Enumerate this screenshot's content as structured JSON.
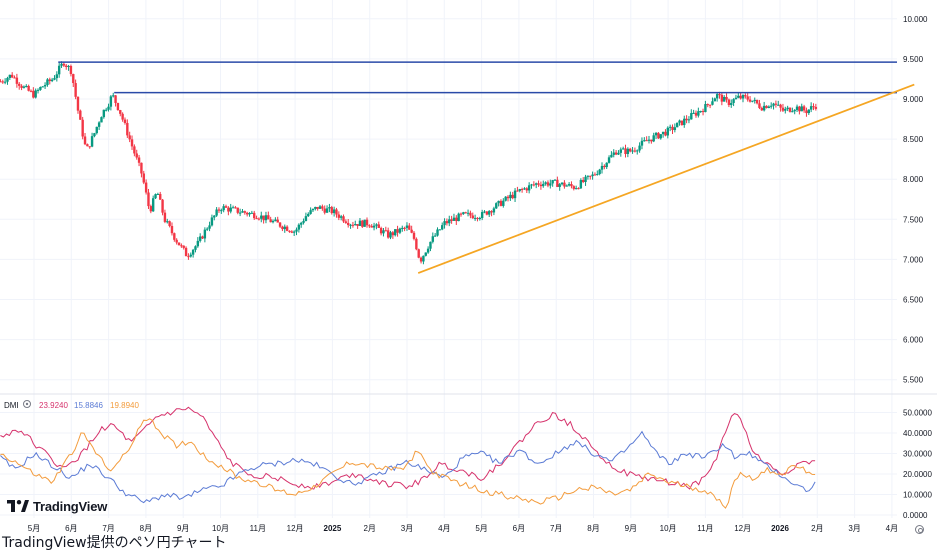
{
  "chart_data": {
    "type": "candlestick",
    "price_axis": {
      "ticks": [
        "10.000",
        "9.500",
        "9.000",
        "8.500",
        "8.000",
        "7.500",
        "7.000",
        "6.500",
        "6.000",
        "5.500"
      ],
      "ylim": [
        5.3,
        10.1
      ]
    },
    "time_axis": {
      "labels": [
        "5月",
        "6月",
        "7月",
        "8月",
        "9月",
        "10月",
        "11月",
        "12月",
        "2025",
        "2月",
        "3月",
        "4月",
        "5月",
        "6月",
        "7月",
        "8月",
        "9月",
        "10月",
        "11月",
        "12月",
        "2026",
        "2月",
        "3月",
        "4月"
      ],
      "bold": [
        "2025",
        "2026"
      ]
    },
    "horizontal_lines": [
      {
        "y": 9.46,
        "color": "#2a4aa8"
      },
      {
        "y": 9.08,
        "color": "#2a4aa8"
      }
    ],
    "trendline": {
      "from": {
        "month_index": 10.3,
        "y": 6.83
      },
      "to": {
        "month_index": 23.6,
        "y": 9.18
      },
      "color": "#f5a623"
    },
    "price_keyframes": [
      [
        -0.9,
        9.22
      ],
      [
        -0.6,
        9.3
      ],
      [
        -0.3,
        9.15
      ],
      [
        0.0,
        9.05
      ],
      [
        0.2,
        9.15
      ],
      [
        0.5,
        9.25
      ],
      [
        0.8,
        9.46
      ],
      [
        1.0,
        9.35
      ],
      [
        1.2,
        8.8
      ],
      [
        1.4,
        8.35
      ],
      [
        1.6,
        8.55
      ],
      [
        1.8,
        8.8
      ],
      [
        2.0,
        8.95
      ],
      [
        2.1,
        9.05
      ],
      [
        2.3,
        8.85
      ],
      [
        2.6,
        8.45
      ],
      [
        2.9,
        8.05
      ],
      [
        3.1,
        7.6
      ],
      [
        3.3,
        7.85
      ],
      [
        3.5,
        7.5
      ],
      [
        3.8,
        7.25
      ],
      [
        4.1,
        7.05
      ],
      [
        4.4,
        7.2
      ],
      [
        4.7,
        7.45
      ],
      [
        5.0,
        7.65
      ],
      [
        5.5,
        7.6
      ],
      [
        6.0,
        7.55
      ],
      [
        6.5,
        7.45
      ],
      [
        7.0,
        7.35
      ],
      [
        7.3,
        7.55
      ],
      [
        7.6,
        7.65
      ],
      [
        8.0,
        7.6
      ],
      [
        8.5,
        7.45
      ],
      [
        9.0,
        7.45
      ],
      [
        9.5,
        7.3
      ],
      [
        10.0,
        7.4
      ],
      [
        10.2,
        7.25
      ],
      [
        10.35,
        6.98
      ],
      [
        10.6,
        7.2
      ],
      [
        11.0,
        7.45
      ],
      [
        11.5,
        7.55
      ],
      [
        12.0,
        7.55
      ],
      [
        12.5,
        7.7
      ],
      [
        13.0,
        7.85
      ],
      [
        13.5,
        7.95
      ],
      [
        14.0,
        7.95
      ],
      [
        14.5,
        7.9
      ],
      [
        15.0,
        8.05
      ],
      [
        15.3,
        8.2
      ],
      [
        15.6,
        8.35
      ],
      [
        16.0,
        8.35
      ],
      [
        16.5,
        8.5
      ],
      [
        17.0,
        8.6
      ],
      [
        17.5,
        8.75
      ],
      [
        18.0,
        8.9
      ],
      [
        18.3,
        9.05
      ],
      [
        18.6,
        8.95
      ],
      [
        18.9,
        9.02
      ],
      [
        19.2,
        9.0
      ],
      [
        19.5,
        8.9
      ],
      [
        19.8,
        8.95
      ],
      [
        20.1,
        8.85
      ],
      [
        20.4,
        8.9
      ],
      [
        20.7,
        8.85
      ],
      [
        21.0,
        8.93
      ]
    ],
    "dmi": {
      "label": "DMI",
      "ylim": [
        0,
        55
      ],
      "ticks": [
        "50.0000",
        "40.0000",
        "30.0000",
        "20.0000",
        "10.0000",
        "0.0000"
      ],
      "series": [
        {
          "name": "adx",
          "value_label": "23.9240",
          "color": "#d6336c",
          "keyframes": [
            [
              -0.9,
              38
            ],
            [
              -0.4,
              42
            ],
            [
              0.3,
              30
            ],
            [
              0.8,
              22
            ],
            [
              1.3,
              30
            ],
            [
              1.8,
              42
            ],
            [
              2.1,
              44
            ],
            [
              2.6,
              35
            ],
            [
              3.0,
              42
            ],
            [
              3.3,
              48
            ],
            [
              3.7,
              50
            ],
            [
              4.1,
              52
            ],
            [
              4.5,
              48
            ],
            [
              4.9,
              36
            ],
            [
              5.3,
              25
            ],
            [
              5.8,
              20
            ],
            [
              6.5,
              18
            ],
            [
              7.0,
              15
            ],
            [
              7.5,
              14
            ],
            [
              8.0,
              16
            ],
            [
              8.5,
              20
            ],
            [
              9.0,
              18
            ],
            [
              9.5,
              15
            ],
            [
              10.0,
              14
            ],
            [
              10.4,
              17
            ],
            [
              10.9,
              25
            ],
            [
              11.4,
              22
            ],
            [
              12.0,
              18
            ],
            [
              12.5,
              25
            ],
            [
              13.0,
              35
            ],
            [
              13.5,
              45
            ],
            [
              13.9,
              49
            ],
            [
              14.4,
              44
            ],
            [
              14.9,
              35
            ],
            [
              15.4,
              25
            ],
            [
              15.9,
              20
            ],
            [
              16.4,
              18
            ],
            [
              17.0,
              16
            ],
            [
              17.6,
              14
            ],
            [
              18.0,
              18
            ],
            [
              18.3,
              28
            ],
            [
              18.6,
              44
            ],
            [
              18.8,
              51
            ],
            [
              19.0,
              44
            ],
            [
              19.3,
              30
            ],
            [
              19.7,
              24
            ],
            [
              20.1,
              20
            ],
            [
              20.4,
              24
            ],
            [
              20.7,
              26
            ],
            [
              21.0,
              25
            ]
          ]
        },
        {
          "name": "di_plus",
          "value_label": "15.8846",
          "color": "#5b7bd5",
          "keyframes": [
            [
              -0.9,
              28
            ],
            [
              -0.5,
              22
            ],
            [
              0.0,
              30
            ],
            [
              0.5,
              24
            ],
            [
              1.0,
              18
            ],
            [
              1.5,
              25
            ],
            [
              2.0,
              18
            ],
            [
              2.5,
              10
            ],
            [
              3.0,
              6
            ],
            [
              3.5,
              10
            ],
            [
              4.0,
              8
            ],
            [
              4.5,
              12
            ],
            [
              5.0,
              14
            ],
            [
              5.5,
              20
            ],
            [
              6.0,
              24
            ],
            [
              6.5,
              25
            ],
            [
              7.0,
              27
            ],
            [
              7.5,
              25
            ],
            [
              8.0,
              20
            ],
            [
              8.5,
              15
            ],
            [
              9.0,
              18
            ],
            [
              9.5,
              22
            ],
            [
              10.0,
              26
            ],
            [
              10.5,
              22
            ],
            [
              11.0,
              18
            ],
            [
              11.5,
              28
            ],
            [
              12.0,
              30
            ],
            [
              12.5,
              25
            ],
            [
              13.0,
              32
            ],
            [
              13.5,
              25
            ],
            [
              14.0,
              30
            ],
            [
              14.5,
              36
            ],
            [
              15.0,
              30
            ],
            [
              15.5,
              26
            ],
            [
              16.0,
              34
            ],
            [
              16.3,
              40
            ],
            [
              16.6,
              32
            ],
            [
              17.0,
              25
            ],
            [
              17.5,
              30
            ],
            [
              18.0,
              28
            ],
            [
              18.5,
              35
            ],
            [
              18.8,
              28
            ],
            [
              19.2,
              30
            ],
            [
              19.6,
              24
            ],
            [
              20.0,
              20
            ],
            [
              20.4,
              15
            ],
            [
              20.7,
              12
            ],
            [
              21.0,
              16
            ]
          ]
        },
        {
          "name": "di_minus",
          "value_label": "19.8940",
          "color": "#f39c3d",
          "keyframes": [
            [
              -0.9,
              30
            ],
            [
              -0.5,
              26
            ],
            [
              0.0,
              20
            ],
            [
              0.5,
              16
            ],
            [
              1.0,
              30
            ],
            [
              1.3,
              40
            ],
            [
              1.6,
              32
            ],
            [
              2.0,
              22
            ],
            [
              2.5,
              30
            ],
            [
              2.8,
              42
            ],
            [
              3.1,
              48
            ],
            [
              3.4,
              40
            ],
            [
              3.8,
              34
            ],
            [
              4.2,
              36
            ],
            [
              4.6,
              28
            ],
            [
              5.0,
              24
            ],
            [
              5.5,
              18
            ],
            [
              6.0,
              16
            ],
            [
              6.5,
              12
            ],
            [
              7.0,
              10
            ],
            [
              7.5,
              14
            ],
            [
              8.0,
              20
            ],
            [
              8.5,
              26
            ],
            [
              9.0,
              24
            ],
            [
              9.5,
              22
            ],
            [
              10.0,
              24
            ],
            [
              10.3,
              32
            ],
            [
              10.6,
              22
            ],
            [
              11.0,
              18
            ],
            [
              11.5,
              15
            ],
            [
              12.0,
              12
            ],
            [
              12.5,
              10
            ],
            [
              13.0,
              8
            ],
            [
              13.5,
              6
            ],
            [
              14.0,
              8
            ],
            [
              14.5,
              12
            ],
            [
              15.0,
              14
            ],
            [
              15.5,
              10
            ],
            [
              16.0,
              12
            ],
            [
              16.5,
              20
            ],
            [
              17.0,
              16
            ],
            [
              17.5,
              14
            ],
            [
              18.0,
              12
            ],
            [
              18.4,
              6
            ],
            [
              18.6,
              4
            ],
            [
              18.7,
              14
            ],
            [
              18.9,
              20
            ],
            [
              19.3,
              18
            ],
            [
              19.7,
              22
            ],
            [
              20.1,
              20
            ],
            [
              20.4,
              24
            ],
            [
              20.7,
              22
            ],
            [
              21.0,
              20
            ]
          ]
        }
      ]
    }
  },
  "brand": {
    "name": "TradingView"
  },
  "caption": "TradingView提供のペソ円チャート",
  "colors": {
    "up": "#089981",
    "down": "#f23645",
    "hline": "#2a4aa8",
    "trend": "#f5a623",
    "grid": "#f0f3fa"
  }
}
